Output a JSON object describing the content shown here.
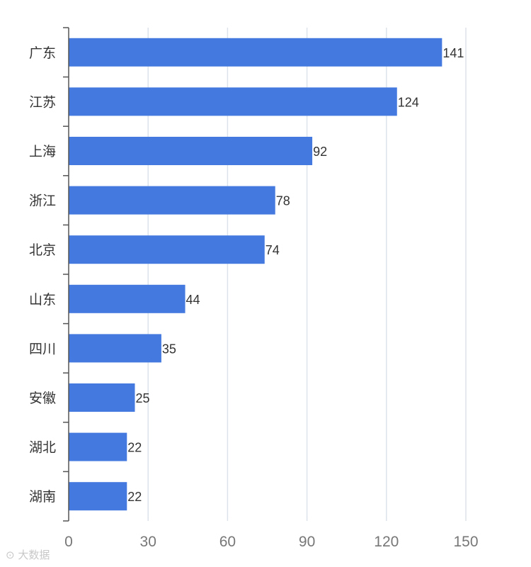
{
  "chart_data": {
    "type": "bar",
    "orientation": "horizontal",
    "categories": [
      "广东",
      "江苏",
      "上海",
      "浙江",
      "北京",
      "山东",
      "四川",
      "安徽",
      "湖北",
      "湖南"
    ],
    "values": [
      141,
      124,
      92,
      78,
      74,
      44,
      35,
      25,
      22,
      22
    ],
    "xlim": [
      0,
      150
    ],
    "xticks": [
      0,
      30,
      60,
      90,
      120,
      150
    ],
    "grid": true,
    "bar_color": "#4479e0"
  },
  "watermark": "大数据"
}
